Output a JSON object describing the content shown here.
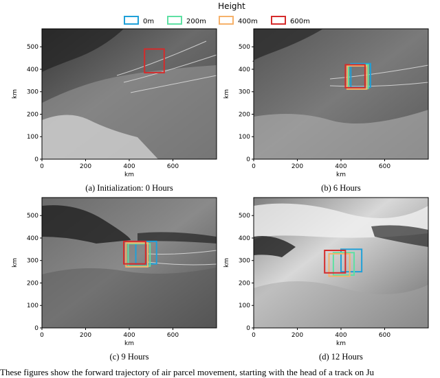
{
  "legend": {
    "title": "Height",
    "items": [
      {
        "label": "0m",
        "color": "#1fa0d8"
      },
      {
        "label": "200m",
        "color": "#5ee0a3"
      },
      {
        "label": "400m",
        "color": "#f6b16a"
      },
      {
        "label": "600m",
        "color": "#d52b2b"
      }
    ]
  },
  "panels": [
    {
      "caption": "(a) Initialization: 0 Hours",
      "xlabel": "km",
      "ylabel": "km",
      "xticks": [
        "0",
        "200",
        "400",
        "600"
      ],
      "yticks": [
        "0",
        "100",
        "200",
        "300",
        "400",
        "500"
      ],
      "xlim": [
        0,
        800
      ],
      "ylim": [
        0,
        580
      ],
      "boxes": [
        {
          "height": "600m",
          "x": [
            470,
            560
          ],
          "y": [
            385,
            490
          ]
        }
      ]
    },
    {
      "caption": "(b) 6 Hours",
      "xlabel": "km",
      "ylabel": "km",
      "xticks": [
        "0",
        "200",
        "400",
        "600"
      ],
      "yticks": [
        "0",
        "100",
        "200",
        "300",
        "400",
        "500"
      ],
      "xlim": [
        0,
        800
      ],
      "ylim": [
        0,
        580
      ],
      "boxes": [
        {
          "height": "0m",
          "x": [
            445,
            535
          ],
          "y": [
            320,
            425
          ]
        },
        {
          "height": "200m",
          "x": [
            435,
            525
          ],
          "y": [
            315,
            420
          ]
        },
        {
          "height": "400m",
          "x": [
            428,
            518
          ],
          "y": [
            312,
            415
          ]
        },
        {
          "height": "600m",
          "x": [
            420,
            510
          ],
          "y": [
            318,
            420
          ]
        }
      ]
    },
    {
      "caption": "(c) 9 Hours",
      "xlabel": "km",
      "ylabel": "km",
      "xticks": [
        "0",
        "200",
        "400",
        "600"
      ],
      "yticks": [
        "0",
        "100",
        "200",
        "300",
        "400",
        "500"
      ],
      "xlim": [
        0,
        800
      ],
      "ylim": [
        0,
        580
      ],
      "boxes": [
        {
          "height": "0m",
          "x": [
            430,
            525
          ],
          "y": [
            285,
            385
          ]
        },
        {
          "height": "200m",
          "x": [
            395,
            495
          ],
          "y": [
            275,
            375
          ]
        },
        {
          "height": "400m",
          "x": [
            385,
            485
          ],
          "y": [
            272,
            378
          ]
        },
        {
          "height": "600m",
          "x": [
            375,
            475
          ],
          "y": [
            285,
            385
          ]
        }
      ]
    },
    {
      "caption": "(d) 12 Hours",
      "xlabel": "km",
      "ylabel": "km",
      "xticks": [
        "0",
        "200",
        "400",
        "600"
      ],
      "yticks": [
        "0",
        "100",
        "200",
        "300",
        "400",
        "500"
      ],
      "xlim": [
        0,
        800
      ],
      "ylim": [
        0,
        580
      ],
      "boxes": [
        {
          "height": "0m",
          "x": [
            400,
            495
          ],
          "y": [
            250,
            350
          ]
        },
        {
          "height": "200m",
          "x": [
            365,
            460
          ],
          "y": [
            235,
            335
          ]
        },
        {
          "height": "400m",
          "x": [
            345,
            440
          ],
          "y": [
            230,
            330
          ]
        },
        {
          "height": "600m",
          "x": [
            325,
            420
          ],
          "y": [
            245,
            345
          ]
        }
      ]
    }
  ],
  "footer_text": "These figures show the forward trajectory of air parcel movement, starting with the head of a track on Ju"
}
